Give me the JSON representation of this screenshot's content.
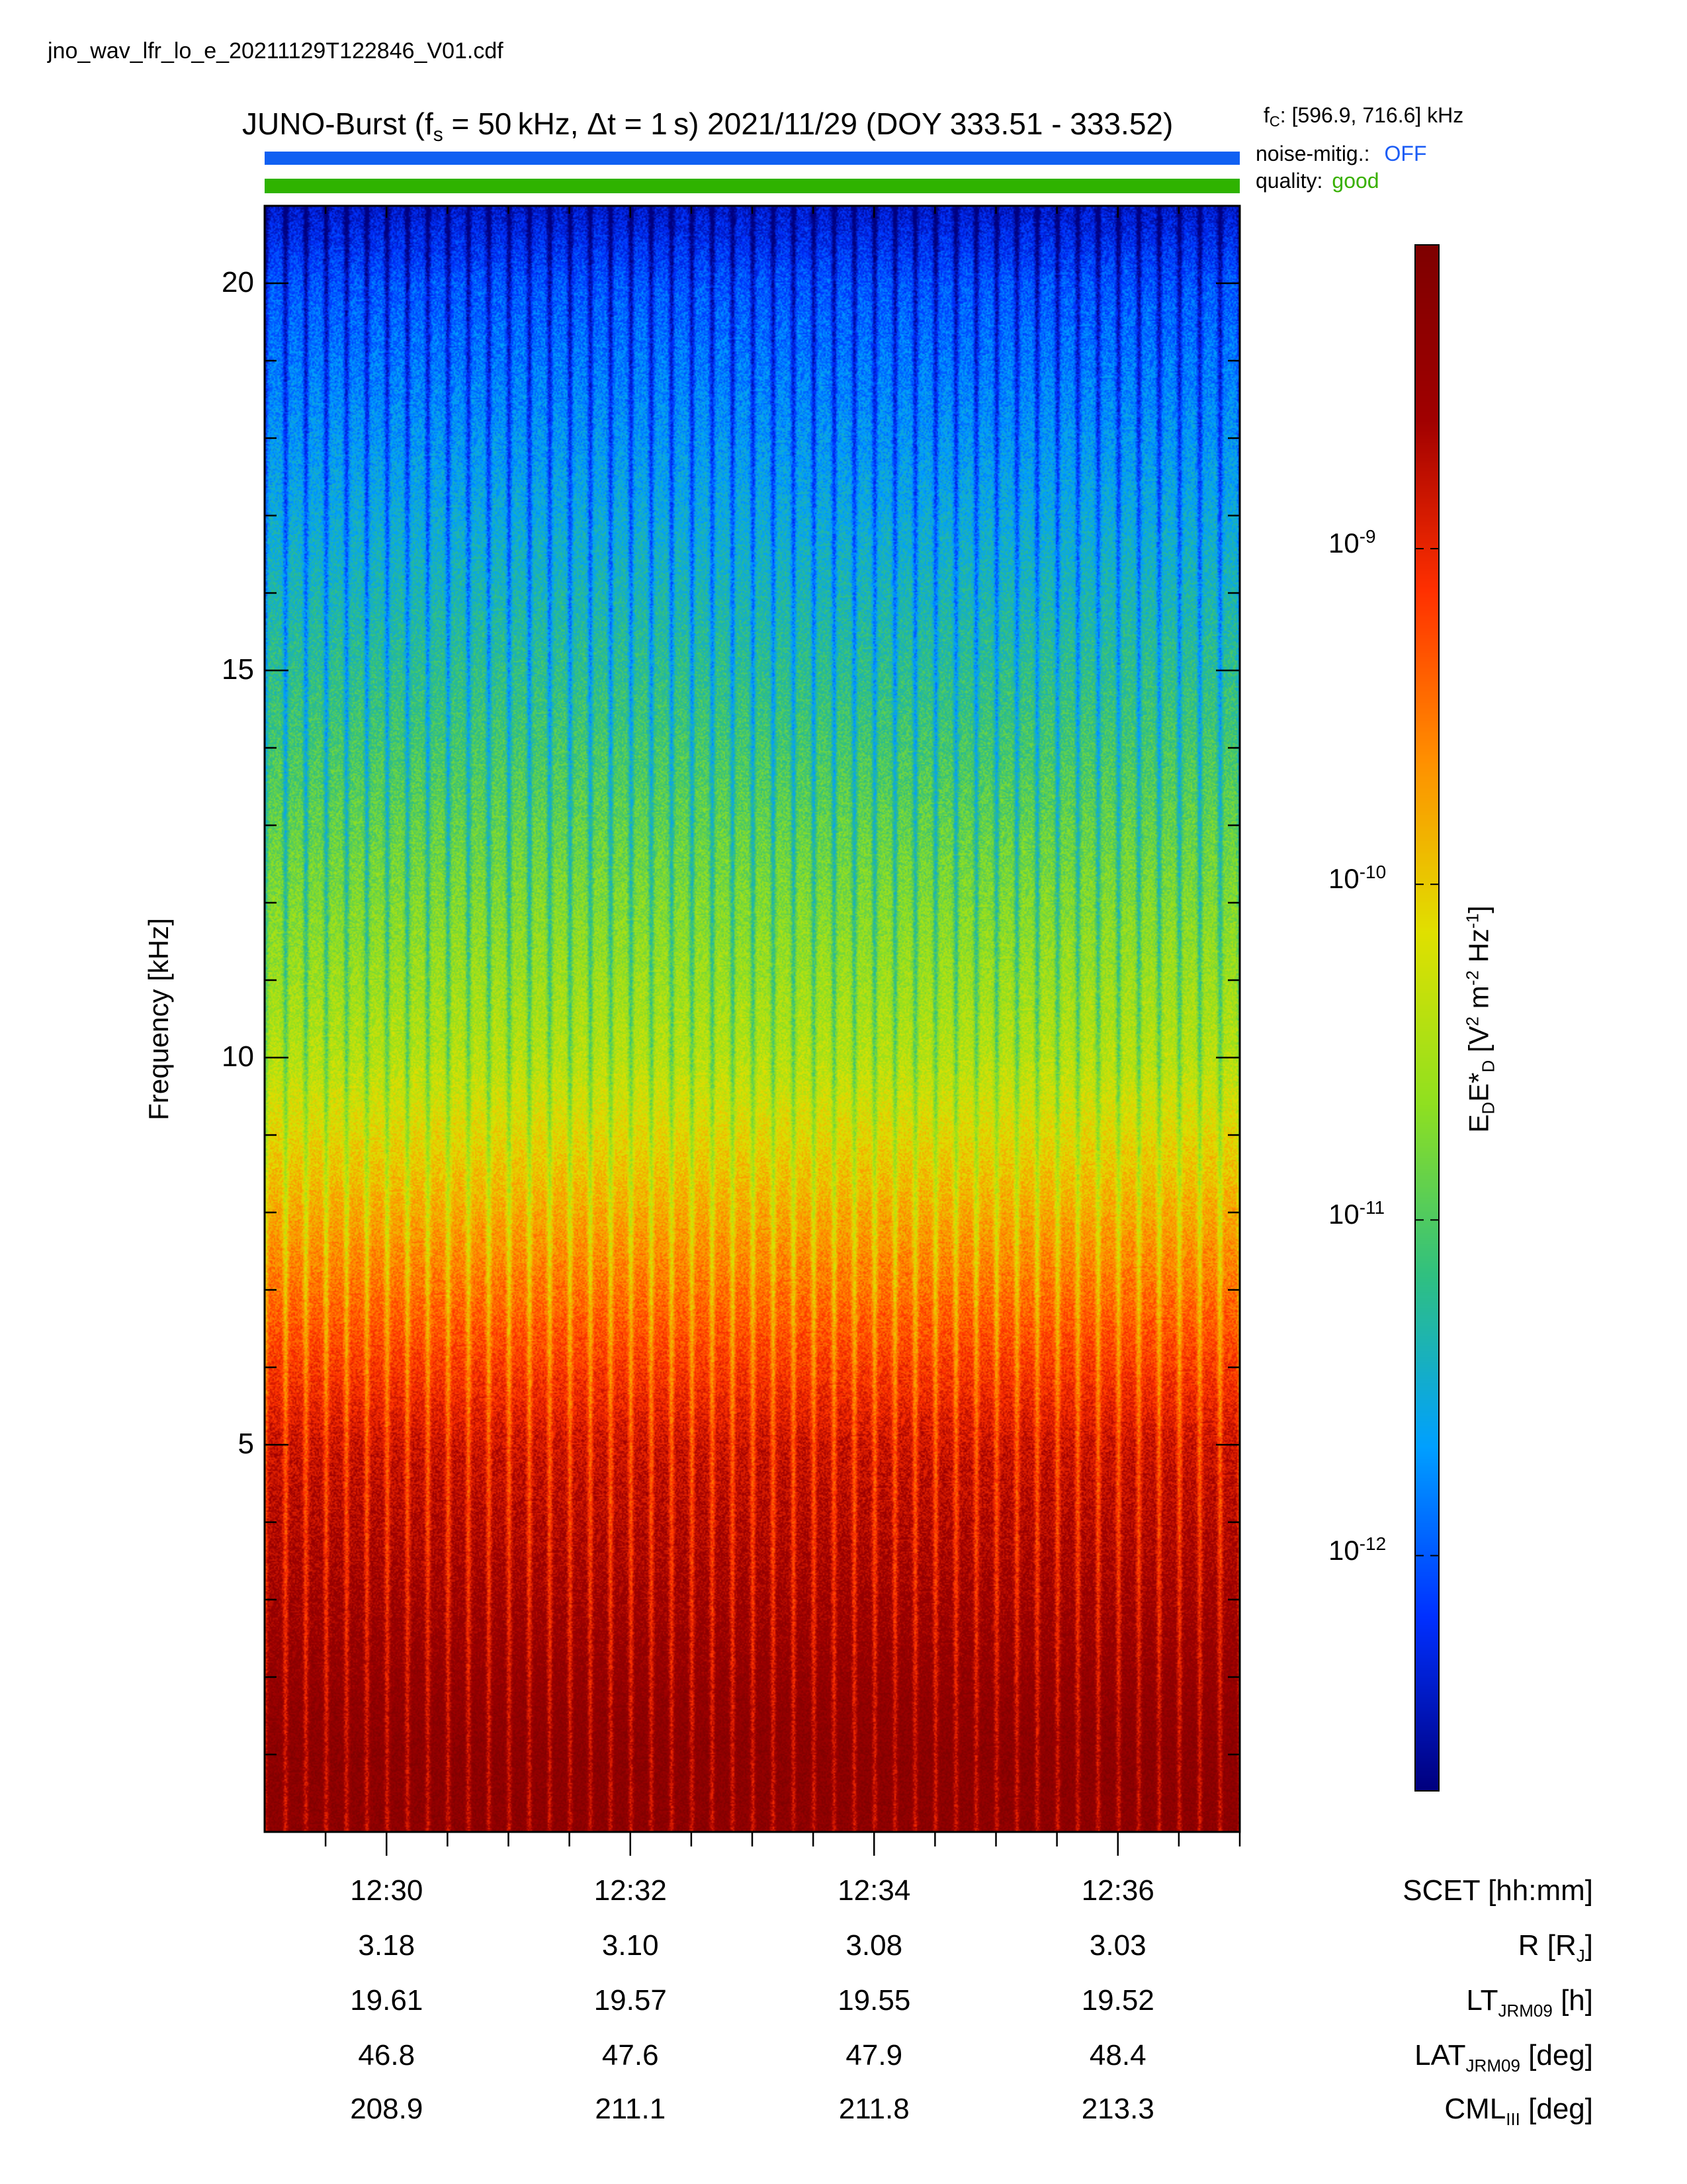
{
  "filename": "jno_wav_lfr_lo_e_20211129T122846_V01.cdf",
  "title": {
    "prefix": "JUNO-Burst (f",
    "fs_sub": "s",
    "mid": " = 50 kHz, Δt = 1 s)  2021/11/29 (DOY 333.51 - 333.52)"
  },
  "fc": {
    "prefix": "f",
    "sub": "C",
    "value": ": [596.9, 716.6] kHz"
  },
  "noise_mitig": {
    "label": "noise-mitig.:",
    "value": "OFF",
    "color": "#1a5cf5"
  },
  "quality": {
    "label": "quality:",
    "value": "good",
    "color": "#38b000"
  },
  "colorbar": {
    "label_main": "E",
    "label_sub1": "D",
    "label_mid": "E*",
    "label_sub2": "D",
    "label_rest_1": " [V",
    "label_sup1": "2",
    "label_rest_2": " m",
    "label_sup2": "-2",
    "label_rest_3": " Hz",
    "label_sup3": "-1",
    "label_rest_4": "]",
    "ticks": [
      {
        "base": "10",
        "exp": "-9",
        "value": 1e-09
      },
      {
        "base": "10",
        "exp": "-10",
        "value": 1e-10
      },
      {
        "base": "10",
        "exp": "-11",
        "value": 1e-11
      },
      {
        "base": "10",
        "exp": "-12",
        "value": 1e-12
      }
    ],
    "scale": "log",
    "colormap": [
      "#00007f",
      "#0030ff",
      "#00a0ff",
      "#30c080",
      "#90e020",
      "#e0e000",
      "#ff9000",
      "#ff3000",
      "#a00000",
      "#7f0000"
    ]
  },
  "bottom_rows": {
    "names": [
      {
        "main": "SCET [hh:mm]",
        "sub": "",
        "rest": ""
      },
      {
        "main": "R [R",
        "sub": "J",
        "rest": "]"
      },
      {
        "main": "LT",
        "sub": "JRM09",
        "rest": " [h]"
      },
      {
        "main": "LAT",
        "sub": "JRM09",
        "rest": " [deg]"
      },
      {
        "main": "CML",
        "sub": "III",
        "rest": " [deg]"
      }
    ],
    "values": [
      [
        "12:30",
        "12:32",
        "12:34",
        "12:36"
      ],
      [
        "3.18",
        "3.10",
        "3.08",
        "3.03"
      ],
      [
        "19.61",
        "19.57",
        "19.55",
        "19.52"
      ],
      [
        "46.8",
        "47.6",
        "47.9",
        "48.4"
      ],
      [
        "208.9",
        "211.1",
        "211.8",
        "213.3"
      ]
    ]
  },
  "chart_data": {
    "type": "heatmap",
    "title": "JUNO-Burst (fs = 50 kHz, Δt = 1 s)  2021/11/29 (DOY 333.51 - 333.52)",
    "xlabel": "SCET [hh:mm]",
    "ylabel": "Frequency [kHz]",
    "x_ticks": [
      "12:30",
      "12:32",
      "12:34",
      "12:36"
    ],
    "x_range_minutes": [
      749.0,
      757.0
    ],
    "x_tick_minutes": [
      750,
      752,
      754,
      756
    ],
    "y_ticks": [
      5,
      10,
      15,
      20
    ],
    "ylim": [
      0,
      21
    ],
    "color_scale": "log",
    "color_ticks": [
      1e-12,
      1e-11,
      1e-10,
      1e-09
    ],
    "color_range": [
      2e-13,
      8e-09
    ],
    "description_values": {
      "band_low_kHz": [
        0,
        1
      ],
      "intensity_low": 5e-09,
      "intensity_mid_5kHz": 1.5e-09,
      "intensity_10kHz": 4e-11,
      "intensity_20kHz": 1e-12
    }
  }
}
